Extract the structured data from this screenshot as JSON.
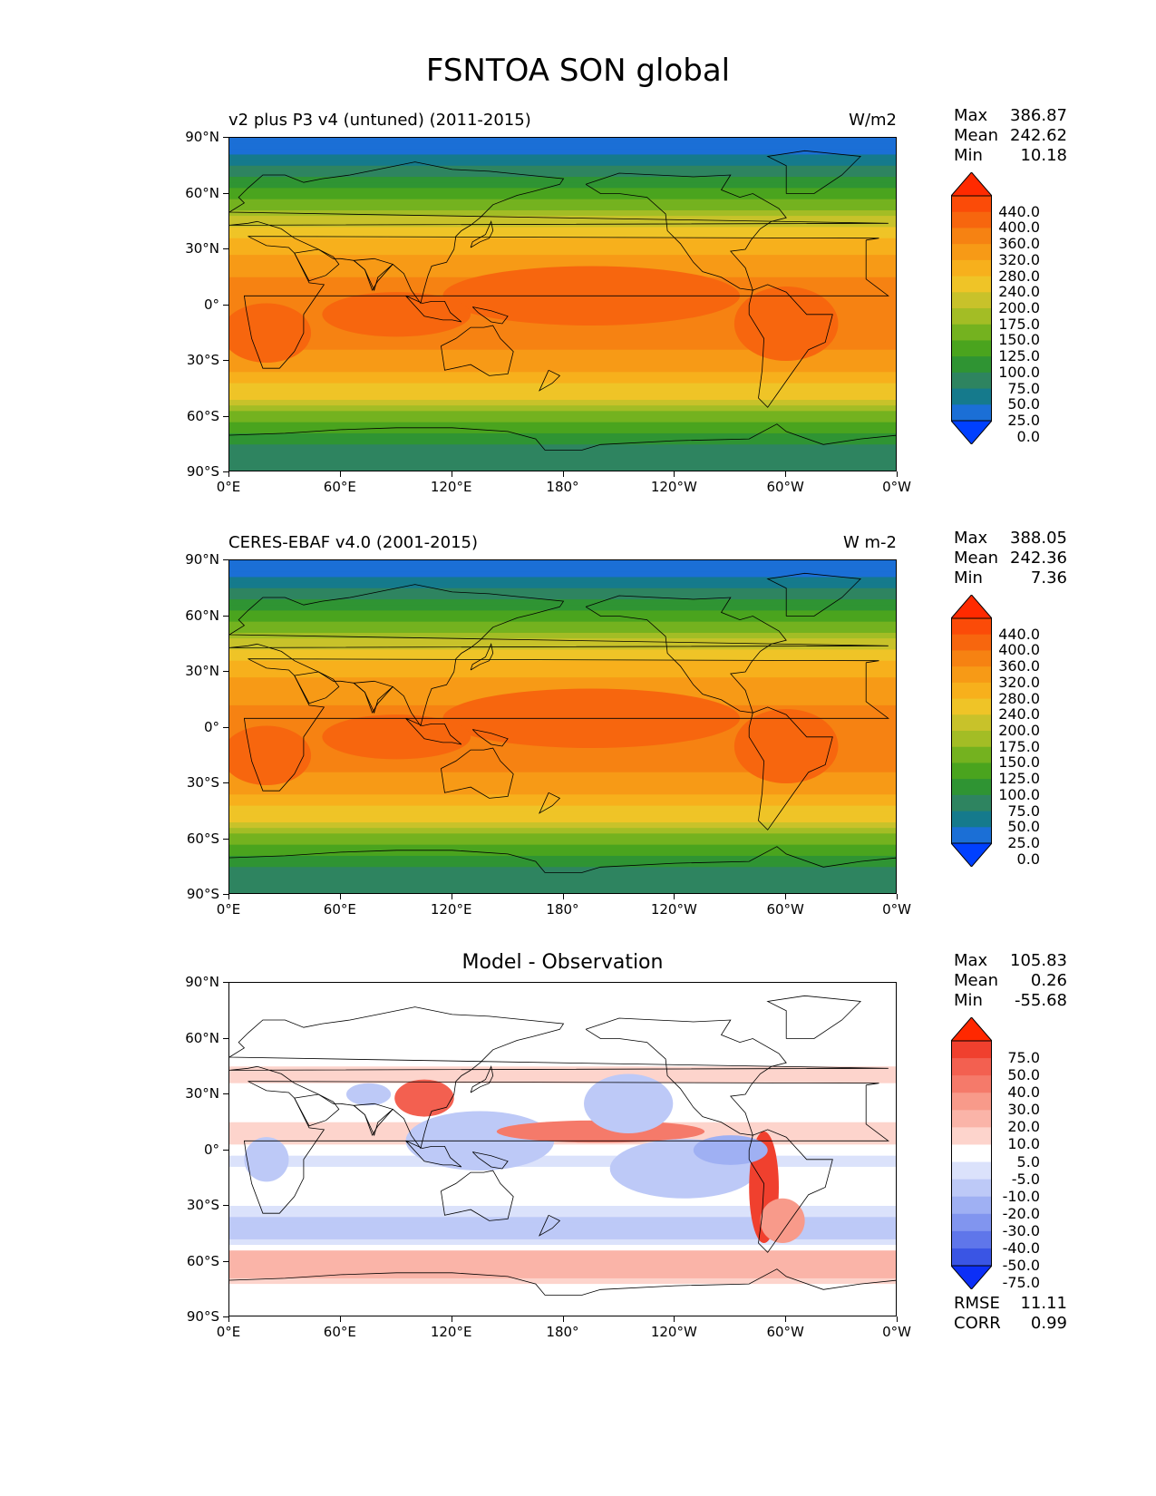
{
  "suptitle": "FSNTOA SON global",
  "panels": [
    {
      "id": "model",
      "title_left": "v2 plus P3 v4 (untuned) (2011-2015)",
      "title_right": "W/m2",
      "title_center": "",
      "stats": [
        {
          "label": "Max",
          "value": "386.87"
        },
        {
          "label": "Mean",
          "value": "242.62"
        },
        {
          "label": "Min",
          "value": "10.18"
        }
      ]
    },
    {
      "id": "obs",
      "title_left": "CERES-EBAF v4.0 (2001-2015)",
      "title_right": "W m-2",
      "title_center": "",
      "stats": [
        {
          "label": "Max",
          "value": "388.05"
        },
        {
          "label": "Mean",
          "value": "242.36"
        },
        {
          "label": "Min",
          "value": "7.36"
        }
      ]
    },
    {
      "id": "diff",
      "title_left": "",
      "title_right": "",
      "title_center": "Model - Observation",
      "stats": [
        {
          "label": "Max",
          "value": "105.83"
        },
        {
          "label": "Mean",
          "value": "0.26"
        },
        {
          "label": "Min",
          "value": "-55.68"
        }
      ],
      "extra": [
        {
          "label": "RMSE",
          "value": "11.11"
        },
        {
          "label": "CORR",
          "value": "0.99"
        }
      ]
    }
  ],
  "axes": {
    "lat_ticks": [
      "90°N",
      "60°N",
      "30°N",
      "0°",
      "30°S",
      "60°S",
      "90°S"
    ],
    "lon_ticks": [
      "0°E",
      "60°E",
      "120°E",
      "180°",
      "120°W",
      "60°W",
      "0°W"
    ]
  },
  "colorbars": {
    "field": {
      "labels": [
        "440.0",
        "400.0",
        "360.0",
        "320.0",
        "280.0",
        "240.0",
        "200.0",
        "175.0",
        "150.0",
        "125.0",
        "100.0",
        "75.0",
        "50.0",
        "25.0",
        "0.0"
      ],
      "colors": [
        "#ff2a00",
        "#fb4b08",
        "#f7660e",
        "#f68212",
        "#f79a16",
        "#f7b01c",
        "#efc427",
        "#c8c22a",
        "#a3bd25",
        "#74b21f",
        "#4aa41e",
        "#2f9433",
        "#2e8460",
        "#157a8c",
        "#1b6fd6",
        "#0040ff"
      ]
    },
    "diff": {
      "labels": [
        "75.0",
        "50.0",
        "40.0",
        "30.0",
        "20.0",
        "10.0",
        "5.0",
        "-5.0",
        "-10.0",
        "-20.0",
        "-30.0",
        "-40.0",
        "-50.0",
        "-75.0"
      ],
      "colors": [
        "#ff2800",
        "#f0402e",
        "#f36050",
        "#f57a6a",
        "#f89a8a",
        "#fab4a8",
        "#fdd4cc",
        "#ffffff",
        "#dbe2fb",
        "#bdc9f7",
        "#9fb0f3",
        "#8195ef",
        "#5f76ea",
        "#3a55e4",
        "#0c2ff7"
      ]
    }
  },
  "chart_data": [
    {
      "type": "heatmap",
      "title": "v2 plus P3 v4 (untuned) (2011-2015)",
      "units": "W/m2",
      "xlabel": "",
      "ylabel": "",
      "x_ticks": [
        "0°E",
        "60°E",
        "120°E",
        "180°",
        "120°W",
        "60°W",
        "0°W"
      ],
      "y_ticks": [
        "90°N",
        "60°N",
        "30°N",
        "0°",
        "30°S",
        "60°S",
        "90°S"
      ],
      "latitude_bands": [
        {
          "lat": 85,
          "value": 12
        },
        {
          "lat": 75,
          "value": 45
        },
        {
          "lat": 65,
          "value": 90
        },
        {
          "lat": 55,
          "value": 135
        },
        {
          "lat": 45,
          "value": 190
        },
        {
          "lat": 35,
          "value": 255
        },
        {
          "lat": 25,
          "value": 290
        },
        {
          "lat": 15,
          "value": 320
        },
        {
          "lat": 5,
          "value": 340
        },
        {
          "lat": -5,
          "value": 350
        },
        {
          "lat": -15,
          "value": 345
        },
        {
          "lat": -25,
          "value": 320
        },
        {
          "lat": -35,
          "value": 280
        },
        {
          "lat": -45,
          "value": 230
        },
        {
          "lat": -55,
          "value": 170
        },
        {
          "lat": -65,
          "value": 110
        },
        {
          "lat": -75,
          "value": 70
        },
        {
          "lat": -85,
          "value": 60
        }
      ],
      "stats": {
        "max": 386.87,
        "mean": 242.62,
        "min": 10.18
      }
    },
    {
      "type": "heatmap",
      "title": "CERES-EBAF v4.0 (2001-2015)",
      "units": "W m-2",
      "xlabel": "",
      "ylabel": "",
      "x_ticks": [
        "0°E",
        "60°E",
        "120°E",
        "180°",
        "120°W",
        "60°W",
        "0°W"
      ],
      "y_ticks": [
        "90°N",
        "60°N",
        "30°N",
        "0°",
        "30°S",
        "60°S",
        "90°S"
      ],
      "latitude_bands": [
        {
          "lat": 85,
          "value": 10
        },
        {
          "lat": 75,
          "value": 45
        },
        {
          "lat": 65,
          "value": 90
        },
        {
          "lat": 55,
          "value": 135
        },
        {
          "lat": 45,
          "value": 190
        },
        {
          "lat": 35,
          "value": 255
        },
        {
          "lat": 25,
          "value": 290
        },
        {
          "lat": 15,
          "value": 315
        },
        {
          "lat": 5,
          "value": 335
        },
        {
          "lat": -5,
          "value": 345
        },
        {
          "lat": -15,
          "value": 340
        },
        {
          "lat": -25,
          "value": 320
        },
        {
          "lat": -35,
          "value": 280
        },
        {
          "lat": -45,
          "value": 230
        },
        {
          "lat": -55,
          "value": 170
        },
        {
          "lat": -65,
          "value": 110
        },
        {
          "lat": -75,
          "value": 70
        },
        {
          "lat": -85,
          "value": 60
        }
      ],
      "stats": {
        "max": 388.05,
        "mean": 242.36,
        "min": 7.36
      }
    },
    {
      "type": "heatmap",
      "title": "Model - Observation",
      "xlabel": "",
      "ylabel": "",
      "x_ticks": [
        "0°E",
        "60°E",
        "120°E",
        "180°",
        "120°W",
        "60°W",
        "0°W"
      ],
      "y_ticks": [
        "90°N",
        "60°N",
        "30°N",
        "0°",
        "30°S",
        "60°S",
        "90°S"
      ],
      "latitude_bands": [
        {
          "lat": 85,
          "value": 0
        },
        {
          "lat": 75,
          "value": 0
        },
        {
          "lat": 65,
          "value": 0
        },
        {
          "lat": 55,
          "value": 0
        },
        {
          "lat": 45,
          "value": 5
        },
        {
          "lat": 35,
          "value": 5
        },
        {
          "lat": 25,
          "value": 0
        },
        {
          "lat": 15,
          "value": 5
        },
        {
          "lat": 5,
          "value": 10
        },
        {
          "lat": -5,
          "value": -10
        },
        {
          "lat": -15,
          "value": 5
        },
        {
          "lat": -25,
          "value": 0
        },
        {
          "lat": -35,
          "value": -10
        },
        {
          "lat": -45,
          "value": -20
        },
        {
          "lat": -55,
          "value": 10
        },
        {
          "lat": -65,
          "value": 20
        },
        {
          "lat": -75,
          "value": 0
        },
        {
          "lat": -85,
          "value": -5
        }
      ],
      "stats": {
        "max": 105.83,
        "mean": 0.26,
        "min": -55.68,
        "rmse": 11.11,
        "corr": 0.99
      }
    }
  ]
}
